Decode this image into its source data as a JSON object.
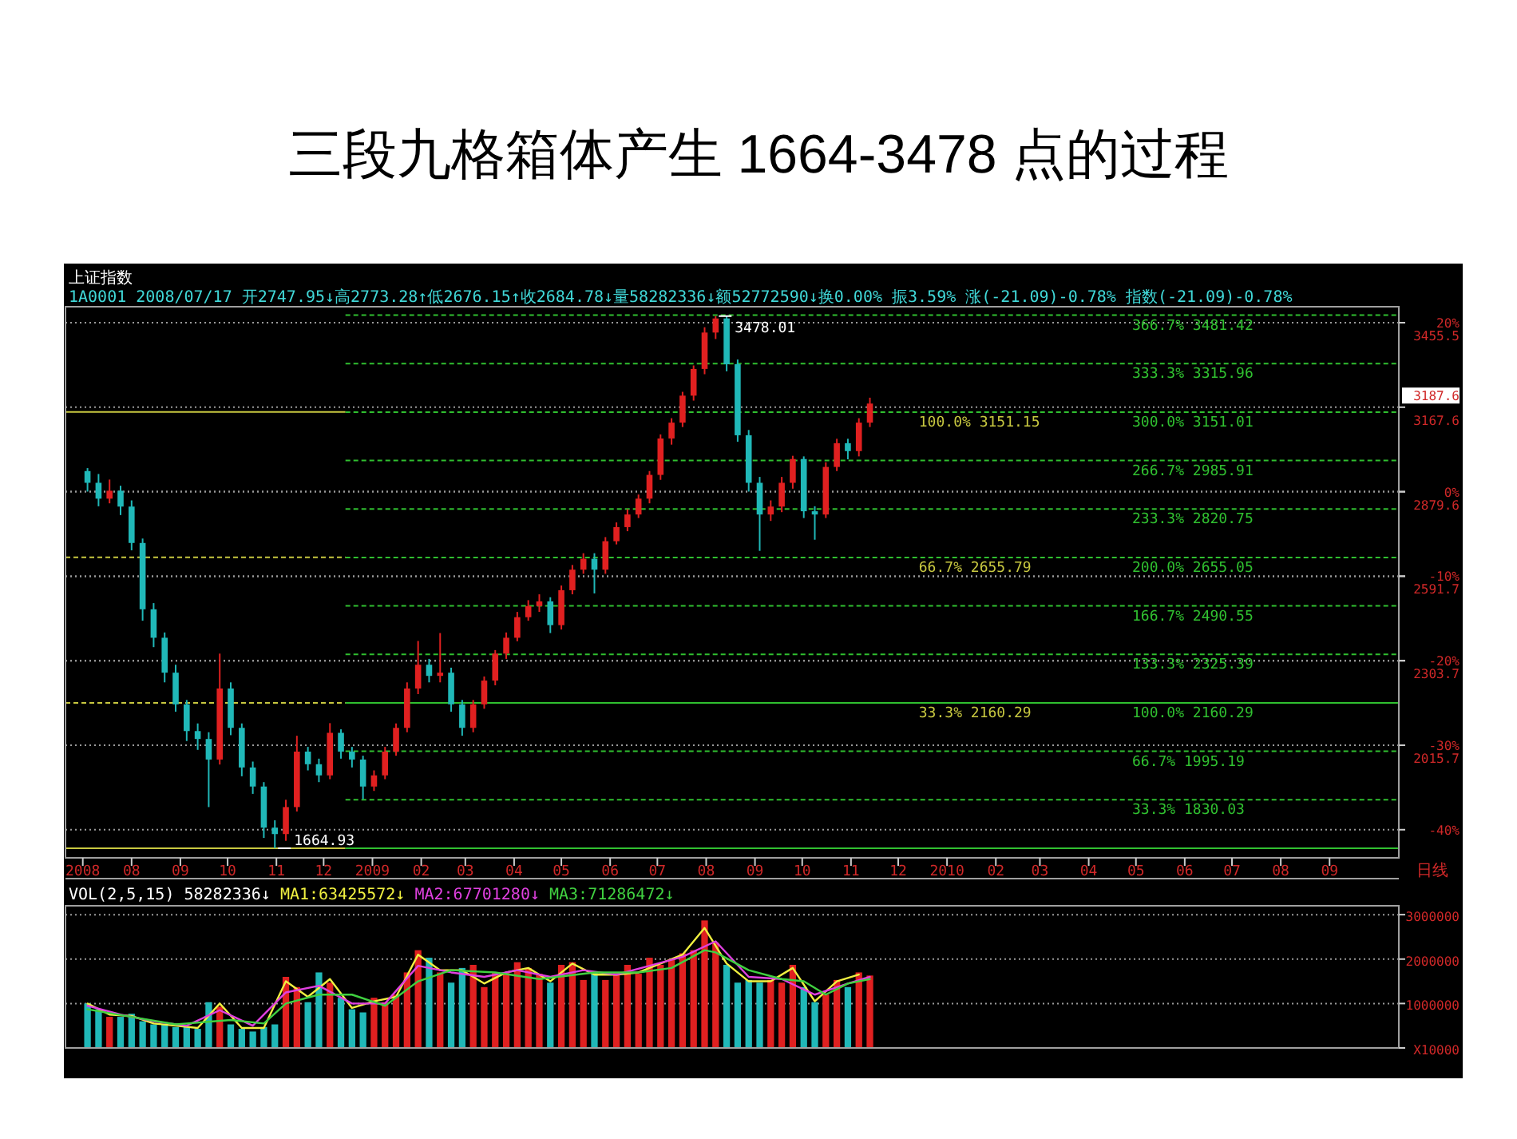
{
  "chart_data": [
    {
      "type": "candlestick",
      "title": "三段九格箱体产生 1664-3478 点的过程",
      "subtitle": "上证指数",
      "annotations": [
        "1A0001 2008/07/17 开2747.95↓高2773.28↑低2676.15↑收2684.78↓量58282336↓额52772590↓换0.00% 振3.59% 涨(-21.09)-0.78% 指数(-21.09)-0.78%",
        {
          "text": "1664.93",
          "x": "2008-10-31",
          "y": 1664.93
        },
        {
          "text": "3478.01",
          "x": "2009-08-07",
          "y": 3478.01
        },
        "3187.6",
        "日线"
      ],
      "x": [
        "2008-07-04",
        "2008-07-11",
        "2008-07-18",
        "2008-07-25",
        "2008-08-01",
        "2008-08-08",
        "2008-08-15",
        "2008-08-22",
        "2008-08-29",
        "2008-09-05",
        "2008-09-12",
        "2008-09-19",
        "2008-09-26",
        "2008-10-03",
        "2008-10-10",
        "2008-10-17",
        "2008-10-24",
        "2008-10-31",
        "2008-11-07",
        "2008-11-14",
        "2008-11-21",
        "2008-11-28",
        "2008-12-05",
        "2008-12-12",
        "2008-12-19",
        "2008-12-26",
        "2009-01-02",
        "2009-01-09",
        "2009-01-16",
        "2009-01-23",
        "2009-01-30",
        "2009-02-06",
        "2009-02-13",
        "2009-02-20",
        "2009-02-27",
        "2009-03-06",
        "2009-03-13",
        "2009-03-20",
        "2009-03-27",
        "2009-04-03",
        "2009-04-10",
        "2009-04-17",
        "2009-04-24",
        "2009-05-01",
        "2009-05-08",
        "2009-05-15",
        "2009-05-22",
        "2009-05-29",
        "2009-06-05",
        "2009-06-12",
        "2009-06-19",
        "2009-06-26",
        "2009-07-03",
        "2009-07-10",
        "2009-07-17",
        "2009-07-24",
        "2009-07-31",
        "2009-08-07",
        "2009-08-14",
        "2009-08-21",
        "2009-08-28",
        "2009-09-04",
        "2009-09-11",
        "2009-09-18",
        "2009-09-25",
        "2009-10-02",
        "2009-10-09",
        "2009-10-16",
        "2009-10-23",
        "2009-10-30",
        "2009-11-06",
        "2009-11-13"
      ],
      "ohlc": [
        [
          2950,
          2960,
          2880,
          2910
        ],
        [
          2910,
          2940,
          2830,
          2856
        ],
        [
          2856,
          2921,
          2840,
          2883
        ],
        [
          2883,
          2900,
          2800,
          2829
        ],
        [
          2829,
          2850,
          2680,
          2705
        ],
        [
          2705,
          2720,
          2440,
          2479
        ],
        [
          2479,
          2500,
          2350,
          2382
        ],
        [
          2382,
          2400,
          2230,
          2263
        ],
        [
          2263,
          2290,
          2130,
          2155
        ],
        [
          2155,
          2170,
          2030,
          2064
        ],
        [
          2064,
          2090,
          2000,
          2037
        ],
        [
          2037,
          2060,
          1805,
          1967
        ],
        [
          1967,
          2328,
          1950,
          2209
        ],
        [
          2209,
          2230,
          2050,
          2075
        ],
        [
          2075,
          2090,
          1910,
          1940
        ],
        [
          1940,
          1960,
          1850,
          1875
        ],
        [
          1875,
          1890,
          1700,
          1735
        ],
        [
          1735,
          1760,
          1664.93,
          1713
        ],
        [
          1713,
          1830,
          1690,
          1805
        ],
        [
          1805,
          2048,
          1790,
          1994
        ],
        [
          1994,
          2010,
          1930,
          1951
        ],
        [
          1951,
          1970,
          1890,
          1913
        ],
        [
          1913,
          2091,
          1900,
          2058
        ],
        [
          2058,
          2070,
          1970,
          1994
        ],
        [
          1994,
          2010,
          1940,
          1967
        ],
        [
          1967,
          1980,
          1832,
          1875
        ],
        [
          1875,
          1930,
          1860,
          1913
        ],
        [
          1913,
          2010,
          1900,
          1994
        ],
        [
          1994,
          2090,
          1980,
          2075
        ],
        [
          2075,
          2230,
          2060,
          2209
        ],
        [
          2209,
          2371,
          2190,
          2290
        ],
        [
          2290,
          2310,
          2230,
          2252
        ],
        [
          2252,
          2398,
          2230,
          2263
        ],
        [
          2263,
          2280,
          2130,
          2155
        ],
        [
          2155,
          2170,
          2048,
          2075
        ],
        [
          2075,
          2170,
          2060,
          2155
        ],
        [
          2155,
          2250,
          2140,
          2236
        ],
        [
          2236,
          2340,
          2220,
          2328
        ],
        [
          2328,
          2400,
          2310,
          2382
        ],
        [
          2382,
          2470,
          2370,
          2452
        ],
        [
          2452,
          2510,
          2440,
          2490
        ],
        [
          2490,
          2530,
          2470,
          2506
        ],
        [
          2506,
          2520,
          2398,
          2425
        ],
        [
          2425,
          2560,
          2410,
          2544
        ],
        [
          2544,
          2630,
          2530,
          2614
        ],
        [
          2614,
          2670,
          2600,
          2651
        ],
        [
          2651,
          2670,
          2533,
          2614
        ],
        [
          2614,
          2725,
          2600,
          2711
        ],
        [
          2711,
          2775,
          2700,
          2759
        ],
        [
          2759,
          2820,
          2745,
          2802
        ],
        [
          2802,
          2870,
          2790,
          2856
        ],
        [
          2856,
          2950,
          2840,
          2937
        ],
        [
          2937,
          3075,
          2920,
          3061
        ],
        [
          3061,
          3130,
          3040,
          3115
        ],
        [
          3115,
          3220,
          3100,
          3207
        ],
        [
          3207,
          3310,
          3190,
          3298
        ],
        [
          3298,
          3440,
          3280,
          3422
        ],
        [
          3422,
          3478.01,
          3400,
          3470
        ],
        [
          3470,
          3480,
          3290,
          3314
        ],
        [
          3314,
          3330,
          3050,
          3072
        ],
        [
          3072,
          3090,
          2880,
          2910
        ],
        [
          2910,
          2930,
          2678,
          2802
        ],
        [
          2802,
          2850,
          2780,
          2829
        ],
        [
          2829,
          2930,
          2810,
          2910
        ],
        [
          2910,
          3002,
          2890,
          2991
        ],
        [
          2991,
          3000,
          2790,
          2813
        ],
        [
          2813,
          2830,
          2716,
          2802
        ],
        [
          2802,
          2980,
          2790,
          2964
        ],
        [
          2964,
          3060,
          2950,
          3045
        ],
        [
          3045,
          3060,
          2990,
          3018
        ],
        [
          3018,
          3130,
          3000,
          3115
        ],
        [
          3115,
          3200,
          3100,
          3180
        ]
      ],
      "colors": [
        "#20b8b8",
        "#20b8b8",
        "#e02020",
        "#20b8b8",
        "#20b8b8",
        "#20b8b8",
        "#20b8b8",
        "#20b8b8",
        "#20b8b8",
        "#20b8b8",
        "#20b8b8",
        "#20b8b8",
        "#e02020",
        "#20b8b8",
        "#20b8b8",
        "#20b8b8",
        "#20b8b8",
        "#20b8b8",
        "#e02020",
        "#e02020",
        "#20b8b8",
        "#20b8b8",
        "#e02020",
        "#20b8b8",
        "#20b8b8",
        "#20b8b8",
        "#e02020",
        "#e02020",
        "#e02020",
        "#e02020",
        "#e02020",
        "#20b8b8",
        "#e02020",
        "#20b8b8",
        "#20b8b8",
        "#e02020",
        "#e02020",
        "#e02020",
        "#e02020",
        "#e02020",
        "#e02020",
        "#e02020",
        "#20b8b8",
        "#e02020",
        "#e02020",
        "#e02020",
        "#20b8b8",
        "#e02020",
        "#e02020",
        "#e02020",
        "#e02020",
        "#e02020",
        "#e02020",
        "#e02020",
        "#e02020",
        "#e02020",
        "#e02020",
        "#e02020",
        "#20b8b8",
        "#20b8b8",
        "#20b8b8",
        "#20b8b8",
        "#e02020",
        "#e02020",
        "#e02020",
        "#20b8b8",
        "#20b8b8",
        "#e02020",
        "#e02020",
        "#20b8b8",
        "#e02020",
        "#e02020"
      ],
      "xlim": [
        "2008-06-20",
        "2010-10-15"
      ],
      "ylim": [
        1632,
        3510
      ],
      "y2lim": [
        -43.33,
        21.89
      ],
      "y2ticks": [
        {
          "value": 20,
          "label": "20%"
        },
        {
          "value": 0,
          "label": "0%"
        },
        {
          "value": -10,
          "label": "-10%"
        },
        {
          "value": -20,
          "label": "-20%"
        },
        {
          "value": -30,
          "label": "-30%"
        },
        {
          "value": -40,
          "label": "-40%"
        }
      ],
      "xticks": [
        {
          "value": "2008-07-01",
          "label": "2008"
        },
        {
          "value": "2008-08-01",
          "label": "08"
        },
        {
          "value": "2008-09-01",
          "label": "09"
        },
        {
          "value": "2008-10-01",
          "label": "10"
        },
        {
          "value": "2008-11-01",
          "label": "11"
        },
        {
          "value": "2008-12-01",
          "label": "12"
        },
        {
          "value": "2009-01-01",
          "label": "2009"
        },
        {
          "value": "2009-02-01",
          "label": "02"
        },
        {
          "value": "2009-03-01",
          "label": "03"
        },
        {
          "value": "2009-04-01",
          "label": "04"
        },
        {
          "value": "2009-05-01",
          "label": "05"
        },
        {
          "value": "2009-06-01",
          "label": "06"
        },
        {
          "value": "2009-07-01",
          "label": "07"
        },
        {
          "value": "2009-08-01",
          "label": "08"
        },
        {
          "value": "2009-09-01",
          "label": "09"
        },
        {
          "value": "2009-10-01",
          "label": "10"
        },
        {
          "value": "2009-11-01",
          "label": "11"
        },
        {
          "value": "2009-12-01",
          "label": "12"
        },
        {
          "value": "2010-01-01",
          "label": "2010"
        },
        {
          "value": "2010-02-01",
          "label": "02"
        },
        {
          "value": "2010-03-01",
          "label": "03"
        },
        {
          "value": "2010-04-01",
          "label": "04"
        },
        {
          "value": "2010-05-01",
          "label": "05"
        },
        {
          "value": "2010-06-01",
          "label": "06"
        },
        {
          "value": "2010-07-01",
          "label": "07"
        },
        {
          "value": "2010-08-01",
          "label": "08"
        },
        {
          "value": "2010-09-01",
          "label": "09"
        }
      ],
      "yticks": [
        3455.5,
        3167.6,
        2879.6,
        2591.7,
        2303.7,
        2015.7
      ],
      "grid": true,
      "ref_lines": [
        {
          "axis": "y",
          "value": 3151.15,
          "label": "100.0% 3151.15",
          "color": "#c8c840",
          "line_style": "solid"
        },
        {
          "axis": "y",
          "value": 2655.79,
          "label": "66.7% 2655.79",
          "color": "#c8c840",
          "line_style": "dashed"
        },
        {
          "axis": "y",
          "value": 2160.29,
          "label": "33.3% 2160.29",
          "color": "#c8c840",
          "line_style": "dashed"
        },
        {
          "axis": "y",
          "value": 1664.93,
          "color": "#c8c840",
          "line_style": "solid"
        },
        {
          "axis": "y",
          "value": 3481.42,
          "label": "366.7% 3481.42",
          "color": "#30c030",
          "line_style": "dashed"
        },
        {
          "axis": "y",
          "value": 3315.96,
          "label": "333.3% 3315.96",
          "color": "#30c030",
          "line_style": "dashed"
        },
        {
          "axis": "y",
          "value": 3151.01,
          "label": "300.0% 3151.01",
          "color": "#30c030",
          "line_style": "dashed"
        },
        {
          "axis": "y",
          "value": 2985.91,
          "label": "266.7% 2985.91",
          "color": "#30c030",
          "line_style": "dashed"
        },
        {
          "axis": "y",
          "value": 2820.75,
          "label": "233.3% 2820.75",
          "color": "#30c030",
          "line_style": "dashed"
        },
        {
          "axis": "y",
          "value": 2655.05,
          "label": "200.0% 2655.05",
          "color": "#30c030",
          "line_style": "dashed"
        },
        {
          "axis": "y",
          "value": 2490.55,
          "label": "166.7% 2490.55",
          "color": "#30c030",
          "line_style": "dashed"
        },
        {
          "axis": "y",
          "value": 2325.39,
          "label": "133.3% 2325.39",
          "color": "#30c030",
          "line_style": "dashed"
        },
        {
          "axis": "y",
          "value": 2160.29,
          "label": "100.0% 2160.29",
          "color": "#30c030",
          "line_style": "solid"
        },
        {
          "axis": "y",
          "value": 1995.19,
          "label": "66.7% 1995.19",
          "color": "#30c030",
          "line_style": "dashed"
        },
        {
          "axis": "y",
          "value": 1830.03,
          "label": "33.3% 1830.03",
          "color": "#30c030",
          "line_style": "dashed"
        },
        {
          "axis": "y",
          "value": 1664.93,
          "color": "#30c030",
          "line_style": "solid"
        }
      ]
    },
    {
      "type": "bar",
      "subtitle": "VOL(2,5,15) 58282336↓",
      "x": [
        "2008-07-04",
        "2008-07-11",
        "2008-07-18",
        "2008-07-25",
        "2008-08-01",
        "2008-08-08",
        "2008-08-15",
        "2008-08-22",
        "2008-08-29",
        "2008-09-05",
        "2008-09-12",
        "2008-09-19",
        "2008-09-26",
        "2008-10-03",
        "2008-10-10",
        "2008-10-17",
        "2008-10-24",
        "2008-10-31",
        "2008-11-07",
        "2008-11-14",
        "2008-11-21",
        "2008-11-28",
        "2008-12-05",
        "2008-12-12",
        "2008-12-19",
        "2008-12-26",
        "2009-01-02",
        "2009-01-09",
        "2009-01-16",
        "2009-01-23",
        "2009-01-30",
        "2009-02-06",
        "2009-02-13",
        "2009-02-20",
        "2009-02-27",
        "2009-03-06",
        "2009-03-13",
        "2009-03-20",
        "2009-03-27",
        "2009-04-03",
        "2009-04-10",
        "2009-04-17",
        "2009-04-24",
        "2009-05-01",
        "2009-05-08",
        "2009-05-15",
        "2009-05-22",
        "2009-05-29",
        "2009-06-05",
        "2009-06-12",
        "2009-06-19",
        "2009-06-26",
        "2009-07-03",
        "2009-07-10",
        "2009-07-17",
        "2009-07-24",
        "2009-07-31",
        "2009-08-07",
        "2009-08-14",
        "2009-08-21",
        "2009-08-28",
        "2009-09-04",
        "2009-09-11",
        "2009-09-18",
        "2009-09-25",
        "2009-10-02",
        "2009-10-09",
        "2009-10-16",
        "2009-10-23",
        "2009-10-30",
        "2009-11-06",
        "2009-11-13"
      ],
      "series": [
        {
          "type": "bar",
          "values": [
            1000000,
            870000,
            700000,
            700000,
            770000,
            600000,
            530000,
            530000,
            470000,
            470000,
            430000,
            1030000,
            930000,
            530000,
            430000,
            370000,
            470000,
            530000,
            1600000,
            1370000,
            1030000,
            1700000,
            1470000,
            1130000,
            870000,
            800000,
            1130000,
            1030000,
            1200000,
            1700000,
            2200000,
            2030000,
            1700000,
            1470000,
            1800000,
            1870000,
            1370000,
            1700000,
            1700000,
            1930000,
            1800000,
            1670000,
            1470000,
            1870000,
            1930000,
            1530000,
            1700000,
            1530000,
            1700000,
            1870000,
            1670000,
            2030000,
            1870000,
            2000000,
            2130000,
            2200000,
            2870000,
            2370000,
            1870000,
            1470000,
            1530000,
            1470000,
            1530000,
            1470000,
            1870000,
            1370000,
            1030000,
            1200000,
            1530000,
            1370000,
            1700000,
            1630000
          ],
          "colors": [
            "#20b8b8",
            "#20b8b8",
            "#e02020",
            "#20b8b8",
            "#20b8b8",
            "#20b8b8",
            "#20b8b8",
            "#20b8b8",
            "#20b8b8",
            "#20b8b8",
            "#20b8b8",
            "#20b8b8",
            "#e02020",
            "#20b8b8",
            "#20b8b8",
            "#20b8b8",
            "#20b8b8",
            "#20b8b8",
            "#e02020",
            "#e02020",
            "#20b8b8",
            "#20b8b8",
            "#e02020",
            "#20b8b8",
            "#20b8b8",
            "#20b8b8",
            "#e02020",
            "#e02020",
            "#e02020",
            "#e02020",
            "#e02020",
            "#20b8b8",
            "#e02020",
            "#20b8b8",
            "#20b8b8",
            "#e02020",
            "#e02020",
            "#e02020",
            "#e02020",
            "#e02020",
            "#e02020",
            "#e02020",
            "#20b8b8",
            "#e02020",
            "#e02020",
            "#e02020",
            "#20b8b8",
            "#e02020",
            "#e02020",
            "#e02020",
            "#e02020",
            "#e02020",
            "#e02020",
            "#e02020",
            "#e02020",
            "#e02020",
            "#e02020",
            "#e02020",
            "#20b8b8",
            "#20b8b8",
            "#20b8b8",
            "#20b8b8",
            "#e02020",
            "#e02020",
            "#e02020",
            "#20b8b8",
            "#20b8b8",
            "#e02020",
            "#e02020",
            "#20b8b8",
            "#e02020",
            "#e02020"
          ]
        },
        {
          "type": "line",
          "name": "MA1:63425572↓",
          "color": "#f0f040",
          "x": [
            "2008-07-04",
            "2008-07-18",
            "2008-08-01",
            "2008-08-15",
            "2008-08-29",
            "2008-09-12",
            "2008-09-26",
            "2008-10-10",
            "2008-10-24",
            "2008-11-07",
            "2008-11-21",
            "2008-12-05",
            "2008-12-19",
            "2009-01-02",
            "2009-01-16",
            "2009-01-30",
            "2009-02-13",
            "2009-02-27",
            "2009-03-13",
            "2009-03-27",
            "2009-04-10",
            "2009-04-24",
            "2009-05-08",
            "2009-05-22",
            "2009-06-05",
            "2009-06-19",
            "2009-07-03",
            "2009-07-17",
            "2009-07-31",
            "2009-08-14",
            "2009-08-28",
            "2009-09-11",
            "2009-09-25",
            "2009-10-09",
            "2009-10-23",
            "2009-11-06"
          ],
          "values": [
            1000000,
            750000,
            720000,
            550000,
            500000,
            450000,
            1000000,
            450000,
            450000,
            1500000,
            1150000,
            1550000,
            900000,
            1050000,
            1150000,
            2100000,
            1750000,
            1750000,
            1450000,
            1700000,
            1800000,
            1500000,
            1900000,
            1650000,
            1650000,
            1700000,
            1900000,
            2100000,
            2700000,
            1900000,
            1500000,
            1500000,
            1800000,
            1050000,
            1500000,
            1650000
          ]
        },
        {
          "type": "line",
          "name": "MA2:67701280↓",
          "color": "#e040e0",
          "x": [
            "2008-07-04",
            "2008-07-25",
            "2008-08-15",
            "2008-09-05",
            "2008-09-26",
            "2008-10-17",
            "2008-11-07",
            "2008-11-28",
            "2008-12-19",
            "2009-01-09",
            "2009-01-30",
            "2009-02-20",
            "2009-03-13",
            "2009-04-03",
            "2009-04-24",
            "2009-05-15",
            "2009-06-05",
            "2009-06-26",
            "2009-07-17",
            "2009-08-07",
            "2009-08-28",
            "2009-09-18",
            "2009-10-09",
            "2009-10-30",
            "2009-11-13"
          ],
          "values": [
            950000,
            750000,
            600000,
            500000,
            850000,
            500000,
            1250000,
            1400000,
            1000000,
            1000000,
            1850000,
            1700000,
            1600000,
            1750000,
            1600000,
            1750000,
            1650000,
            1850000,
            2050000,
            2400000,
            1600000,
            1550000,
            1200000,
            1450000,
            1600000
          ]
        },
        {
          "type": "line",
          "name": "MA3:71286472↓",
          "color": "#40d040",
          "x": [
            "2008-07-04",
            "2008-08-01",
            "2008-08-29",
            "2008-10-03",
            "2008-10-24",
            "2008-11-07",
            "2008-11-28",
            "2008-12-19",
            "2009-01-09",
            "2009-01-30",
            "2009-02-20",
            "2009-03-20",
            "2009-04-17",
            "2009-05-22",
            "2009-06-19",
            "2009-07-10",
            "2009-07-31",
            "2009-08-07",
            "2009-08-28",
            "2009-09-18",
            "2009-10-02",
            "2009-10-16",
            "2009-10-30",
            "2009-11-13"
          ],
          "values": [
            870000,
            700000,
            530000,
            630000,
            550000,
            1000000,
            1200000,
            1200000,
            950000,
            1500000,
            1750000,
            1700000,
            1550000,
            1700000,
            1700000,
            1800000,
            2200000,
            2150000,
            1750000,
            1550000,
            1500000,
            1200000,
            1450000,
            1550000
          ]
        }
      ],
      "xlim": [
        "2008-06-20",
        "2010-10-15"
      ],
      "ylim": [
        0,
        3200000
      ],
      "yticks": [
        {
          "value": 0,
          "label": "X10000"
        },
        1000000,
        2000000,
        3000000
      ],
      "grid": "y",
      "legend": "top left",
      "tick_labels": "y"
    }
  ]
}
